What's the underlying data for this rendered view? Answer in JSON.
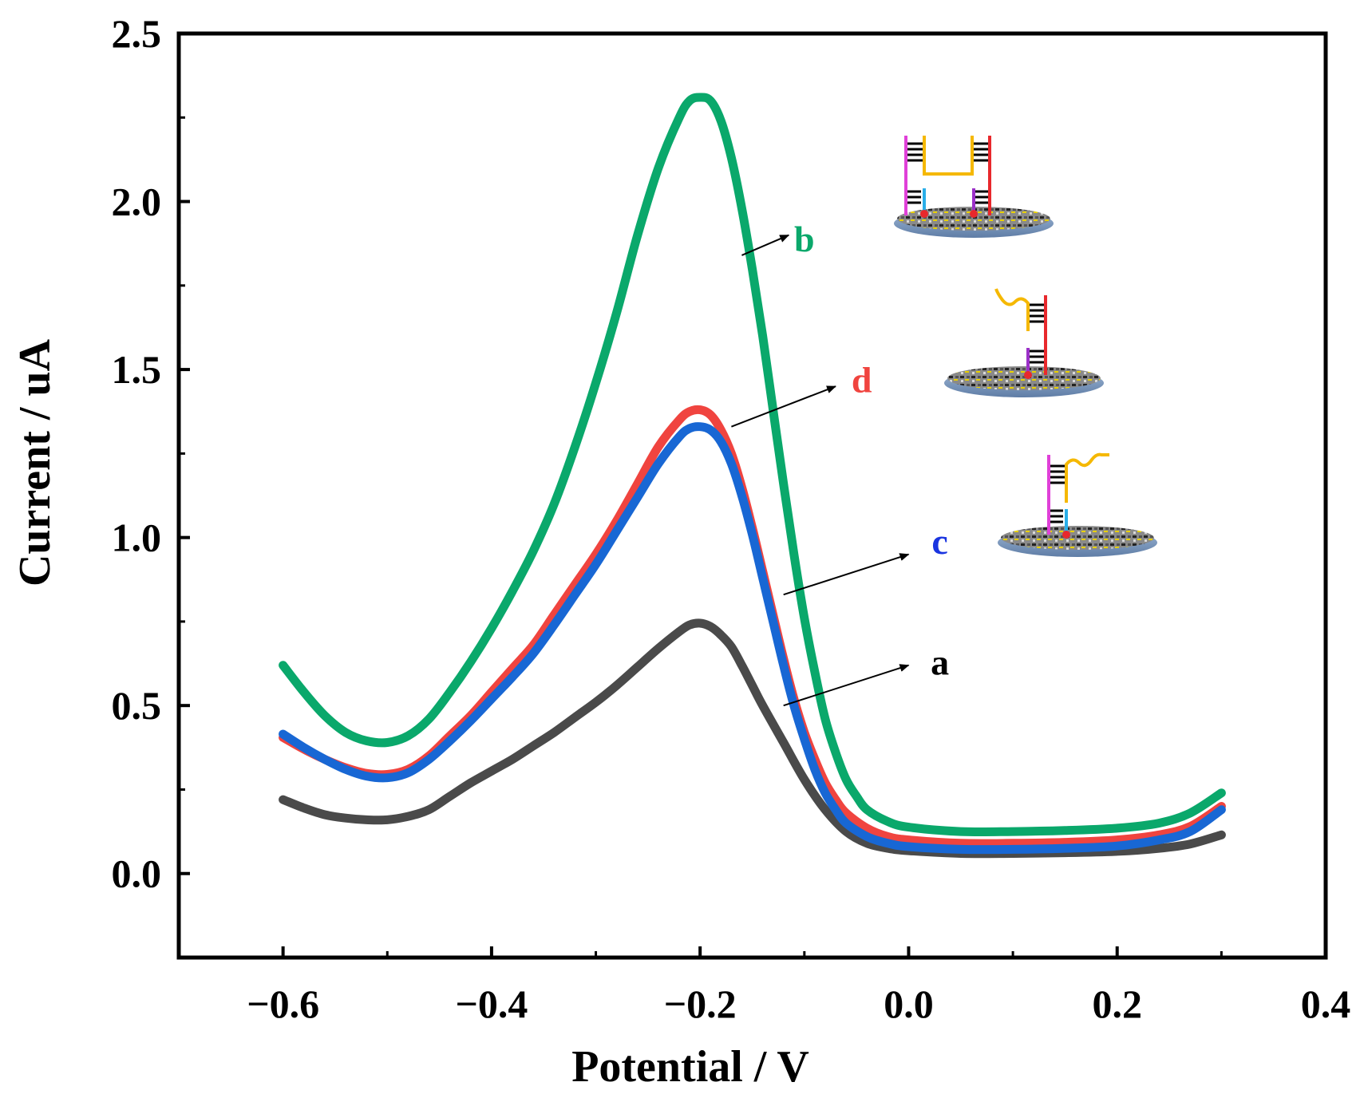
{
  "chart_data": {
    "type": "line",
    "title": "",
    "xlabel": "Potential / V",
    "ylabel": "Current / uA",
    "xlim": [
      -0.7,
      0.4
    ],
    "ylim": [
      -0.25,
      2.5
    ],
    "xticks": [
      -0.6,
      -0.4,
      -0.2,
      0.0,
      0.2,
      0.4
    ],
    "xtick_labels": [
      "−0.6",
      "−0.4",
      "−0.2",
      "0.0",
      "0.2",
      "0.4"
    ],
    "yticks": [
      0.0,
      0.5,
      1.0,
      1.5,
      2.0,
      2.5
    ],
    "ytick_labels": [
      "0.0",
      "0.5",
      "1.0",
      "1.5",
      "2.0",
      "2.5"
    ],
    "grid": false,
    "series": [
      {
        "name": "a",
        "color": "#4a4a4a",
        "points": [
          [
            -0.6,
            0.22
          ],
          [
            -0.58,
            0.195
          ],
          [
            -0.56,
            0.175
          ],
          [
            -0.54,
            0.165
          ],
          [
            -0.52,
            0.16
          ],
          [
            -0.5,
            0.16
          ],
          [
            -0.48,
            0.17
          ],
          [
            -0.46,
            0.19
          ],
          [
            -0.44,
            0.23
          ],
          [
            -0.42,
            0.27
          ],
          [
            -0.4,
            0.305
          ],
          [
            -0.38,
            0.34
          ],
          [
            -0.36,
            0.38
          ],
          [
            -0.34,
            0.42
          ],
          [
            -0.32,
            0.465
          ],
          [
            -0.3,
            0.51
          ],
          [
            -0.28,
            0.56
          ],
          [
            -0.26,
            0.615
          ],
          [
            -0.24,
            0.67
          ],
          [
            -0.22,
            0.72
          ],
          [
            -0.21,
            0.74
          ],
          [
            -0.2,
            0.745
          ],
          [
            -0.19,
            0.735
          ],
          [
            -0.18,
            0.71
          ],
          [
            -0.17,
            0.675
          ],
          [
            -0.16,
            0.62
          ],
          [
            -0.15,
            0.56
          ],
          [
            -0.14,
            0.5
          ],
          [
            -0.12,
            0.39
          ],
          [
            -0.1,
            0.28
          ],
          [
            -0.08,
            0.19
          ],
          [
            -0.06,
            0.125
          ],
          [
            -0.04,
            0.09
          ],
          [
            -0.02,
            0.075
          ],
          [
            0.0,
            0.068
          ],
          [
            0.05,
            0.06
          ],
          [
            0.1,
            0.06
          ],
          [
            0.15,
            0.062
          ],
          [
            0.2,
            0.066
          ],
          [
            0.24,
            0.075
          ],
          [
            0.27,
            0.088
          ],
          [
            0.3,
            0.115
          ]
        ]
      },
      {
        "name": "b",
        "color": "#0aa86b",
        "points": [
          [
            -0.6,
            0.62
          ],
          [
            -0.58,
            0.54
          ],
          [
            -0.56,
            0.47
          ],
          [
            -0.54,
            0.42
          ],
          [
            -0.52,
            0.395
          ],
          [
            -0.5,
            0.39
          ],
          [
            -0.48,
            0.41
          ],
          [
            -0.46,
            0.46
          ],
          [
            -0.44,
            0.54
          ],
          [
            -0.42,
            0.63
          ],
          [
            -0.4,
            0.73
          ],
          [
            -0.38,
            0.84
          ],
          [
            -0.36,
            0.96
          ],
          [
            -0.34,
            1.1
          ],
          [
            -0.32,
            1.27
          ],
          [
            -0.3,
            1.46
          ],
          [
            -0.28,
            1.67
          ],
          [
            -0.26,
            1.9
          ],
          [
            -0.24,
            2.1
          ],
          [
            -0.22,
            2.25
          ],
          [
            -0.21,
            2.3
          ],
          [
            -0.2,
            2.31
          ],
          [
            -0.19,
            2.3
          ],
          [
            -0.18,
            2.24
          ],
          [
            -0.17,
            2.13
          ],
          [
            -0.16,
            1.98
          ],
          [
            -0.15,
            1.8
          ],
          [
            -0.14,
            1.6
          ],
          [
            -0.13,
            1.38
          ],
          [
            -0.12,
            1.16
          ],
          [
            -0.11,
            0.95
          ],
          [
            -0.1,
            0.76
          ],
          [
            -0.09,
            0.6
          ],
          [
            -0.08,
            0.46
          ],
          [
            -0.07,
            0.36
          ],
          [
            -0.06,
            0.28
          ],
          [
            -0.05,
            0.23
          ],
          [
            -0.04,
            0.19
          ],
          [
            -0.02,
            0.155
          ],
          [
            0.0,
            0.138
          ],
          [
            0.05,
            0.125
          ],
          [
            0.1,
            0.125
          ],
          [
            0.15,
            0.128
          ],
          [
            0.2,
            0.135
          ],
          [
            0.24,
            0.15
          ],
          [
            0.27,
            0.18
          ],
          [
            0.3,
            0.24
          ]
        ]
      },
      {
        "name": "d",
        "color": "#f0443f",
        "points": [
          [
            -0.6,
            0.405
          ],
          [
            -0.58,
            0.37
          ],
          [
            -0.56,
            0.34
          ],
          [
            -0.54,
            0.315
          ],
          [
            -0.52,
            0.298
          ],
          [
            -0.5,
            0.295
          ],
          [
            -0.48,
            0.31
          ],
          [
            -0.46,
            0.35
          ],
          [
            -0.44,
            0.41
          ],
          [
            -0.42,
            0.47
          ],
          [
            -0.4,
            0.54
          ],
          [
            -0.38,
            0.61
          ],
          [
            -0.36,
            0.68
          ],
          [
            -0.34,
            0.77
          ],
          [
            -0.32,
            0.86
          ],
          [
            -0.3,
            0.95
          ],
          [
            -0.28,
            1.05
          ],
          [
            -0.26,
            1.16
          ],
          [
            -0.24,
            1.27
          ],
          [
            -0.22,
            1.35
          ],
          [
            -0.21,
            1.375
          ],
          [
            -0.2,
            1.38
          ],
          [
            -0.19,
            1.365
          ],
          [
            -0.18,
            1.32
          ],
          [
            -0.17,
            1.25
          ],
          [
            -0.16,
            1.15
          ],
          [
            -0.15,
            1.03
          ],
          [
            -0.14,
            0.9
          ],
          [
            -0.13,
            0.77
          ],
          [
            -0.12,
            0.64
          ],
          [
            -0.11,
            0.52
          ],
          [
            -0.1,
            0.42
          ],
          [
            -0.09,
            0.34
          ],
          [
            -0.08,
            0.27
          ],
          [
            -0.07,
            0.22
          ],
          [
            -0.06,
            0.18
          ],
          [
            -0.04,
            0.135
          ],
          [
            -0.02,
            0.11
          ],
          [
            0.0,
            0.1
          ],
          [
            0.05,
            0.09
          ],
          [
            0.1,
            0.09
          ],
          [
            0.15,
            0.093
          ],
          [
            0.2,
            0.1
          ],
          [
            0.24,
            0.115
          ],
          [
            0.27,
            0.14
          ],
          [
            0.3,
            0.2
          ]
        ]
      },
      {
        "name": "c",
        "color": "#1867d4",
        "points": [
          [
            -0.6,
            0.415
          ],
          [
            -0.58,
            0.375
          ],
          [
            -0.56,
            0.34
          ],
          [
            -0.54,
            0.31
          ],
          [
            -0.52,
            0.29
          ],
          [
            -0.5,
            0.285
          ],
          [
            -0.48,
            0.3
          ],
          [
            -0.46,
            0.34
          ],
          [
            -0.44,
            0.395
          ],
          [
            -0.42,
            0.455
          ],
          [
            -0.4,
            0.52
          ],
          [
            -0.38,
            0.585
          ],
          [
            -0.36,
            0.655
          ],
          [
            -0.34,
            0.74
          ],
          [
            -0.32,
            0.83
          ],
          [
            -0.3,
            0.92
          ],
          [
            -0.28,
            1.02
          ],
          [
            -0.26,
            1.12
          ],
          [
            -0.24,
            1.22
          ],
          [
            -0.22,
            1.3
          ],
          [
            -0.21,
            1.325
          ],
          [
            -0.2,
            1.33
          ],
          [
            -0.19,
            1.32
          ],
          [
            -0.18,
            1.285
          ],
          [
            -0.17,
            1.22
          ],
          [
            -0.16,
            1.125
          ],
          [
            -0.15,
            1.01
          ],
          [
            -0.14,
            0.88
          ],
          [
            -0.13,
            0.75
          ],
          [
            -0.12,
            0.62
          ],
          [
            -0.11,
            0.5
          ],
          [
            -0.1,
            0.4
          ],
          [
            -0.09,
            0.31
          ],
          [
            -0.08,
            0.24
          ],
          [
            -0.07,
            0.19
          ],
          [
            -0.06,
            0.15
          ],
          [
            -0.04,
            0.11
          ],
          [
            -0.02,
            0.09
          ],
          [
            0.0,
            0.08
          ],
          [
            0.05,
            0.072
          ],
          [
            0.1,
            0.072
          ],
          [
            0.15,
            0.075
          ],
          [
            0.2,
            0.082
          ],
          [
            0.24,
            0.1
          ],
          [
            0.27,
            0.125
          ],
          [
            0.3,
            0.19
          ]
        ]
      }
    ],
    "annotations": [
      {
        "label": "b",
        "color": "#0aa86b",
        "arrow_from": [
          -0.16,
          1.84
        ],
        "arrow_to": [
          -0.115,
          1.9
        ],
        "label_at": [
          -0.1,
          1.89
        ]
      },
      {
        "label": "d",
        "color": "#f0443f",
        "arrow_from": [
          -0.17,
          1.33
        ],
        "arrow_to": [
          -0.07,
          1.45
        ],
        "label_at": [
          -0.045,
          1.47
        ]
      },
      {
        "label": "c",
        "color": "#1a35e0",
        "arrow_from": [
          -0.12,
          0.83
        ],
        "arrow_to": [
          0.0,
          0.95
        ],
        "label_at": [
          0.03,
          0.99
        ]
      },
      {
        "label": "a",
        "color": "#000000",
        "arrow_from": [
          -0.12,
          0.5
        ],
        "arrow_to": [
          0.0,
          0.62
        ],
        "label_at": [
          0.03,
          0.63
        ]
      }
    ]
  }
}
